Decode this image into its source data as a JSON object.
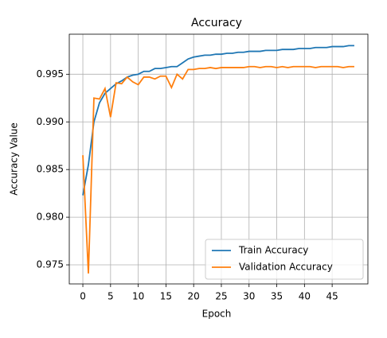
{
  "chart_data": {
    "type": "line",
    "title": "Accuracy",
    "x_label": "Epoch",
    "y_label": "Accuracy Value",
    "x": [
      0,
      1,
      2,
      3,
      4,
      5,
      6,
      7,
      8,
      9,
      10,
      11,
      12,
      13,
      14,
      15,
      16,
      17,
      18,
      19,
      20,
      21,
      22,
      23,
      24,
      25,
      26,
      27,
      28,
      29,
      30,
      31,
      32,
      33,
      34,
      35,
      36,
      37,
      38,
      39,
      40,
      41,
      42,
      43,
      44,
      45,
      46,
      47,
      48,
      49
    ],
    "series": [
      {
        "name": "Train Accuracy",
        "color": "#1f77b4",
        "values": [
          0.9823,
          0.9855,
          0.99,
          0.992,
          0.993,
          0.9935,
          0.994,
          0.9943,
          0.9947,
          0.9949,
          0.995,
          0.9953,
          0.9953,
          0.9956,
          0.9956,
          0.9957,
          0.9958,
          0.9958,
          0.9962,
          0.9966,
          0.9968,
          0.9969,
          0.997,
          0.997,
          0.9971,
          0.9971,
          0.9972,
          0.9972,
          0.9973,
          0.9973,
          0.9974,
          0.9974,
          0.9974,
          0.9975,
          0.9975,
          0.9975,
          0.9976,
          0.9976,
          0.9976,
          0.9977,
          0.9977,
          0.9977,
          0.9978,
          0.9978,
          0.9978,
          0.9979,
          0.9979,
          0.9979,
          0.998,
          0.998
        ]
      },
      {
        "name": "Validation Accuracy",
        "color": "#ff7f0e",
        "values": [
          0.9865,
          0.9741,
          0.9925,
          0.9924,
          0.9935,
          0.9905,
          0.9941,
          0.994,
          0.9947,
          0.9942,
          0.9939,
          0.9947,
          0.9947,
          0.9945,
          0.9948,
          0.9948,
          0.9936,
          0.995,
          0.9945,
          0.9955,
          0.9955,
          0.9956,
          0.9956,
          0.9957,
          0.9956,
          0.9957,
          0.9957,
          0.9957,
          0.9957,
          0.9957,
          0.9958,
          0.9958,
          0.9957,
          0.9958,
          0.9958,
          0.9957,
          0.9958,
          0.9957,
          0.9958,
          0.9958,
          0.9958,
          0.9958,
          0.9957,
          0.9958,
          0.9958,
          0.9958,
          0.9958,
          0.9957,
          0.9958,
          0.9958
        ]
      }
    ],
    "xlim": [
      -2.45,
      51.45
    ],
    "xticks": [
      0,
      5,
      10,
      15,
      20,
      25,
      30,
      35,
      40,
      45
    ],
    "ylim": [
      0.973,
      0.9992
    ],
    "yticks": [
      0.975,
      {
        "value": 0.98,
        "label": "0.980"
      },
      0.985,
      {
        "value": 0.99,
        "label": "0.990"
      },
      0.995
    ],
    "grid": true,
    "legend": "lower right"
  }
}
